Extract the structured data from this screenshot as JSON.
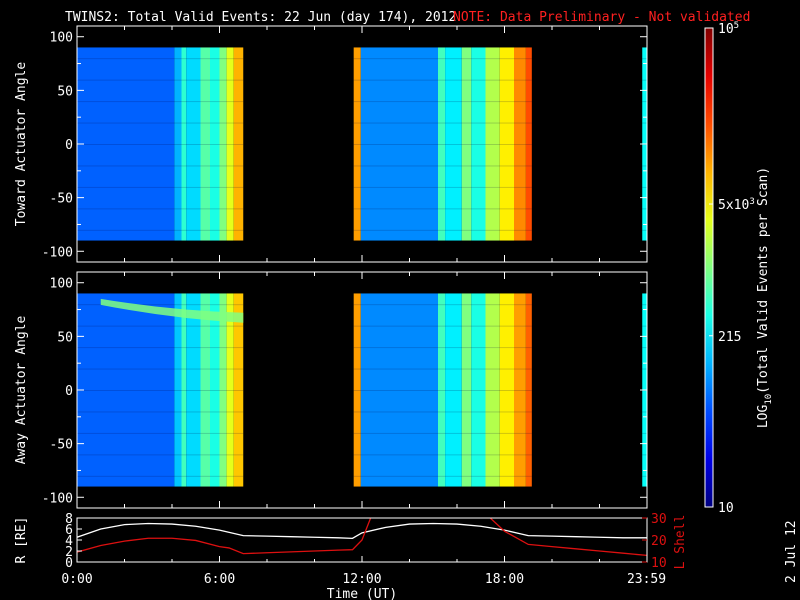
{
  "header": {
    "title": "TWINS2: Total Valid Events: 22 Jun (day 174), 2012",
    "note": "NOTE: Data Preliminary - Not validated"
  },
  "side_stamp": "2 Jul 12",
  "colors": {
    "background": "#000000",
    "note": "#ff2020",
    "orbit_r": "#ffffff",
    "orbit_lshell": "#dd1010"
  },
  "chart_data": [
    {
      "type": "heatmap",
      "panel": "toward",
      "ylabel": "Toward Actuator Angle",
      "ylim": [
        -110,
        110
      ],
      "yticks": [
        100,
        50,
        0,
        -50,
        -100
      ],
      "xlim": [
        0,
        24
      ],
      "data_ylim": [
        -90,
        90
      ],
      "coverage_hours": [
        [
          0,
          7.0
        ],
        [
          11.65,
          19.15
        ],
        [
          23.8,
          24
        ]
      ],
      "column_intensity": [
        {
          "x": [
            0,
            4.1
          ],
          "v": 0.22
        },
        {
          "x": [
            4.1,
            4.4
          ],
          "v": 0.3
        },
        {
          "x": [
            4.4,
            4.6
          ],
          "v": 0.42
        },
        {
          "x": [
            4.6,
            5.2
          ],
          "v": 0.34
        },
        {
          "x": [
            5.2,
            5.6
          ],
          "v": 0.46
        },
        {
          "x": [
            5.6,
            6.0
          ],
          "v": 0.4
        },
        {
          "x": [
            6.0,
            6.3
          ],
          "v": 0.5
        },
        {
          "x": [
            6.3,
            6.6
          ],
          "v": 0.6
        },
        {
          "x": [
            6.6,
            7.0
          ],
          "v": 0.7
        },
        {
          "x": [
            11.65,
            11.95
          ],
          "v": 0.72
        },
        {
          "x": [
            11.95,
            15.2
          ],
          "v": 0.26
        },
        {
          "x": [
            15.2,
            15.5
          ],
          "v": 0.44
        },
        {
          "x": [
            15.5,
            16.2
          ],
          "v": 0.36
        },
        {
          "x": [
            16.2,
            16.6
          ],
          "v": 0.5
        },
        {
          "x": [
            16.6,
            17.2
          ],
          "v": 0.4
        },
        {
          "x": [
            17.2,
            17.8
          ],
          "v": 0.55
        },
        {
          "x": [
            17.8,
            18.4
          ],
          "v": 0.64
        },
        {
          "x": [
            18.4,
            18.9
          ],
          "v": 0.74
        },
        {
          "x": [
            18.9,
            19.15
          ],
          "v": 0.8
        },
        {
          "x": [
            23.8,
            24
          ],
          "v": 0.38
        }
      ]
    },
    {
      "type": "heatmap",
      "panel": "away",
      "ylabel": "Away Actuator Angle",
      "ylim": [
        -110,
        110
      ],
      "yticks": [
        100,
        50,
        0,
        -50,
        -100
      ],
      "xlim": [
        0,
        24
      ],
      "data_ylim": [
        -90,
        90
      ],
      "coverage_hours": [
        [
          0,
          7.0
        ],
        [
          11.65,
          19.15
        ],
        [
          23.8,
          24
        ]
      ],
      "column_intensity": [
        {
          "x": [
            0,
            4.1
          ],
          "v": 0.22
        },
        {
          "x": [
            4.1,
            4.4
          ],
          "v": 0.32
        },
        {
          "x": [
            4.4,
            4.6
          ],
          "v": 0.44
        },
        {
          "x": [
            4.6,
            5.2
          ],
          "v": 0.34
        },
        {
          "x": [
            5.2,
            5.6
          ],
          "v": 0.46
        },
        {
          "x": [
            5.6,
            6.0
          ],
          "v": 0.4
        },
        {
          "x": [
            6.0,
            6.3
          ],
          "v": 0.5
        },
        {
          "x": [
            6.3,
            6.6
          ],
          "v": 0.6
        },
        {
          "x": [
            6.6,
            7.0
          ],
          "v": 0.68
        },
        {
          "x": [
            11.65,
            11.95
          ],
          "v": 0.72
        },
        {
          "x": [
            11.95,
            15.2
          ],
          "v": 0.26
        },
        {
          "x": [
            15.2,
            15.5
          ],
          "v": 0.44
        },
        {
          "x": [
            15.5,
            16.2
          ],
          "v": 0.36
        },
        {
          "x": [
            16.2,
            16.6
          ],
          "v": 0.5
        },
        {
          "x": [
            16.6,
            17.2
          ],
          "v": 0.4
        },
        {
          "x": [
            17.2,
            17.8
          ],
          "v": 0.55
        },
        {
          "x": [
            17.8,
            18.4
          ],
          "v": 0.64
        },
        {
          "x": [
            18.4,
            18.9
          ],
          "v": 0.72
        },
        {
          "x": [
            18.9,
            19.15
          ],
          "v": 0.78
        },
        {
          "x": [
            23.8,
            24
          ],
          "v": 0.38
        }
      ],
      "bright_band": {
        "x": [
          1.0,
          7.0
        ],
        "y_start": 85,
        "y_end": 72,
        "v": 0.5
      }
    },
    {
      "type": "line",
      "panel": "orbit",
      "ylabel": "R [RE]",
      "y2label": "L Shell",
      "ylim": [
        0,
        8
      ],
      "yticks": [
        0,
        2,
        4,
        6,
        8
      ],
      "y2lim": [
        10,
        30
      ],
      "y2ticks": [
        10,
        20,
        30
      ],
      "xlabel": "Time (UT)",
      "xticks": [
        {
          "x": 0,
          "label": "0:00"
        },
        {
          "x": 6,
          "label": "6:00"
        },
        {
          "x": 12,
          "label": "12:00"
        },
        {
          "x": 18,
          "label": "18:00"
        },
        {
          "x": 23.98,
          "label": "23:59"
        }
      ],
      "series": [
        {
          "axis": "left",
          "x": [
            0,
            1,
            2,
            3,
            4,
            5,
            6,
            7,
            8,
            9,
            10,
            11,
            11.6,
            12,
            13,
            14,
            15,
            16,
            17,
            18,
            19,
            20,
            21,
            22,
            23,
            24
          ],
          "y": [
            4.5,
            6.0,
            6.8,
            7.0,
            6.9,
            6.5,
            5.8,
            4.8,
            4.7,
            4.6,
            4.5,
            4.4,
            4.3,
            5.3,
            6.3,
            6.9,
            7.0,
            6.9,
            6.5,
            5.8,
            4.8,
            4.7,
            4.6,
            4.5,
            4.4,
            4.4
          ]
        },
        {
          "axis": "right",
          "x": [
            0,
            1,
            2,
            3,
            4,
            5,
            6,
            6.4,
            7,
            8,
            9,
            10,
            11,
            11.6,
            12,
            12.4,
            17.3,
            18,
            19,
            20,
            21,
            22,
            23,
            24
          ],
          "y": [
            14.5,
            17.5,
            19.5,
            20.8,
            20.8,
            19.8,
            17,
            16.4,
            13.8,
            14.2,
            14.6,
            15.0,
            15.4,
            15.6,
            20,
            31,
            31,
            24,
            18,
            17,
            16,
            15,
            14,
            13
          ]
        }
      ]
    }
  ],
  "colorbar": {
    "scale": "log",
    "range": [
      10,
      100000
    ],
    "ticks": [
      {
        "label": "10",
        "frac": 0.0
      },
      {
        "label": "215",
        "frac": 0.3575
      },
      {
        "label": "5x10",
        "sup": "3",
        "frac": 0.6325
      },
      {
        "label": "10",
        "sup": "5",
        "frac": 1.0
      }
    ],
    "label_main": "LOG",
    "label_sub": "10",
    "label_rest": "(Total Valid Events per Scan)"
  }
}
